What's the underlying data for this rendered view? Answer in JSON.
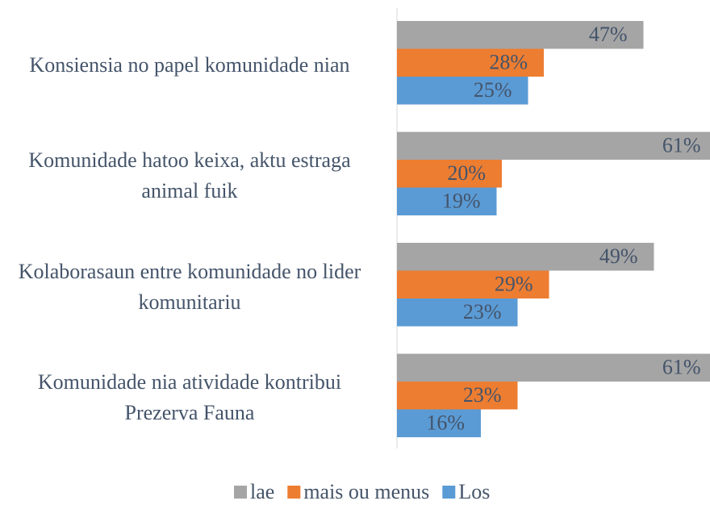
{
  "chart_data": {
    "type": "hbar",
    "categories": [
      "Konsiensia no papel komunidade nian",
      "Komunidade hatoo keixa, aktu estraga animal fuik",
      "Kolaborasaun entre komunidade no lider komunitariu",
      "Komunidade nia atividade kontribui Prezerva Fauna"
    ],
    "series": [
      {
        "name": "lae",
        "color": "#a5a5a5",
        "values": [
          47,
          61,
          49,
          61
        ],
        "value_labels": [
          "47%",
          "61%",
          "49%",
          "61%"
        ]
      },
      {
        "name": "mais ou menus",
        "color": "#ed7d31",
        "values": [
          28,
          20,
          29,
          23
        ],
        "value_labels": [
          "28%",
          "20%",
          "29%",
          "23%"
        ]
      },
      {
        "name": "Los",
        "color": "#5b9bd5",
        "values": [
          25,
          19,
          23,
          16
        ],
        "value_labels": [
          "25%",
          "19%",
          "23%",
          "16%"
        ]
      }
    ]
  }
}
